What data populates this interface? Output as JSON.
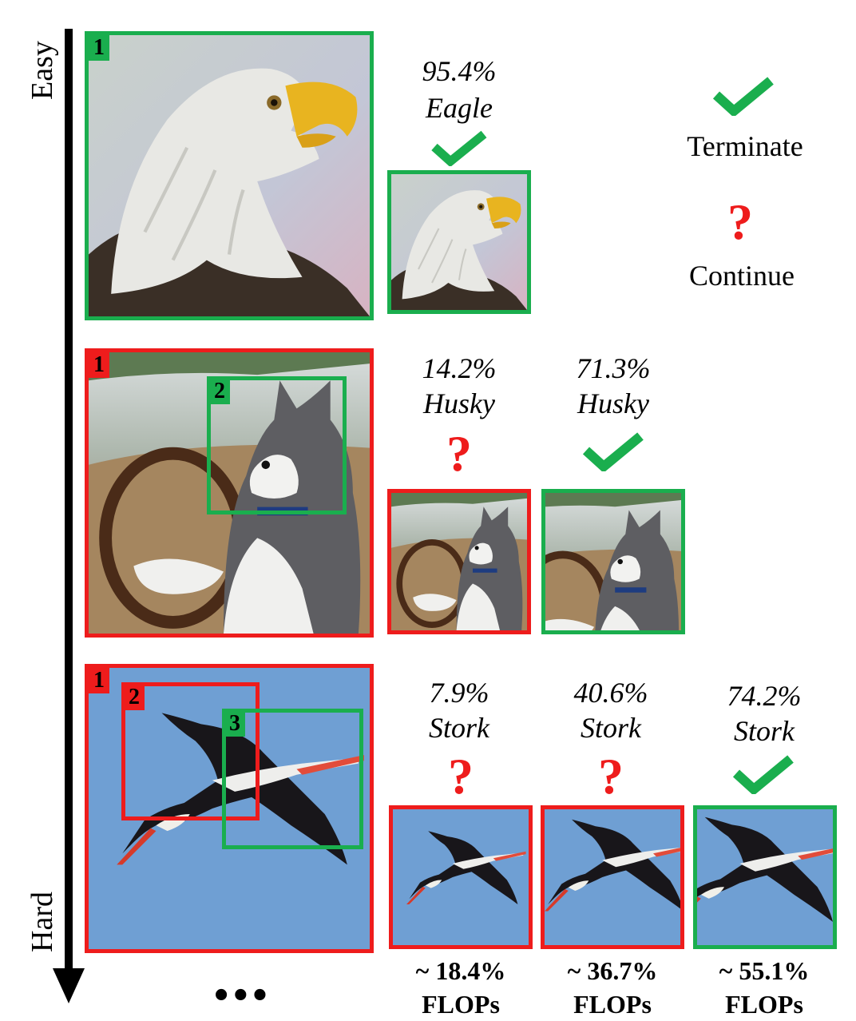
{
  "axis": {
    "top_label": "Easy",
    "bottom_label": "Hard"
  },
  "legend": {
    "terminate_icon": "check-icon",
    "terminate_label": "Terminate",
    "continue_icon": "question-icon",
    "continue_label": "Continue"
  },
  "rows": [
    {
      "subject": "eagle",
      "regions": [
        "1"
      ],
      "steps": [
        {
          "confidence": "95.4%",
          "class_label": "Eagle",
          "decision": "terminate"
        }
      ]
    },
    {
      "subject": "husky",
      "regions": [
        "1",
        "2"
      ],
      "steps": [
        {
          "confidence": "14.2%",
          "class_label": "Husky",
          "decision": "continue"
        },
        {
          "confidence": "71.3%",
          "class_label": "Husky",
          "decision": "terminate"
        }
      ]
    },
    {
      "subject": "stork",
      "regions": [
        "1",
        "2",
        "3"
      ],
      "steps": [
        {
          "confidence": "7.9%",
          "class_label": "Stork",
          "decision": "continue"
        },
        {
          "confidence": "40.6%",
          "class_label": "Stork",
          "decision": "continue"
        },
        {
          "confidence": "74.2%",
          "class_label": "Stork",
          "decision": "terminate"
        }
      ]
    }
  ],
  "flops": [
    {
      "value": "~ 18.4%",
      "unit": "FLOPs"
    },
    {
      "value": "~ 36.7%",
      "unit": "FLOPs"
    },
    {
      "value": "~ 55.1%",
      "unit": "FLOPs"
    }
  ],
  "ellipsis": "•••",
  "colors": {
    "terminate": "#1aae4e",
    "continue": "#ee1c1c",
    "sky": "#6f9fd3"
  }
}
